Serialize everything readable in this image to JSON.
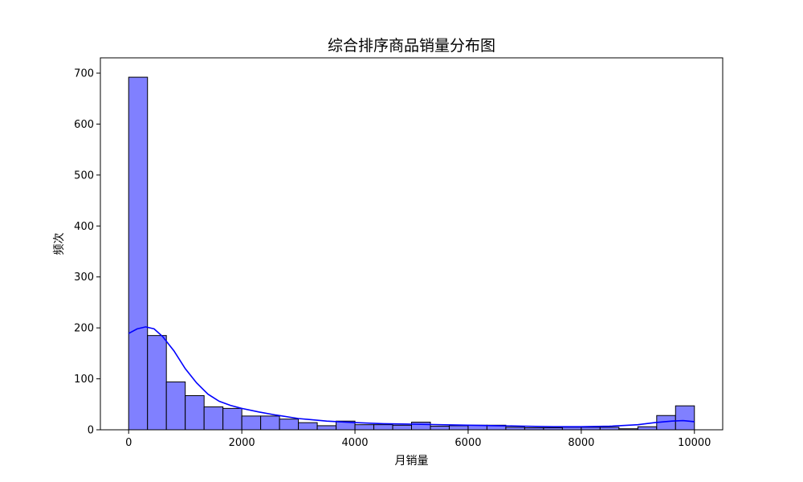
{
  "chart_data": {
    "type": "bar",
    "subtype": "histogram-with-kde",
    "title": "综合排序商品销量分布图",
    "xlabel": "月销量",
    "ylabel": "频次",
    "xlim": [
      -500,
      10500
    ],
    "ylim": [
      0,
      730
    ],
    "x_ticks": [
      0,
      2000,
      4000,
      6000,
      8000,
      10000
    ],
    "y_ticks": [
      0,
      100,
      200,
      300,
      400,
      500,
      600,
      700
    ],
    "bin_width": 333.33,
    "bins": [
      {
        "start": 0,
        "count": 692
      },
      {
        "start": 333.33,
        "count": 185
      },
      {
        "start": 666.67,
        "count": 94
      },
      {
        "start": 1000,
        "count": 67
      },
      {
        "start": 1333.33,
        "count": 45
      },
      {
        "start": 1666.67,
        "count": 42
      },
      {
        "start": 2000,
        "count": 27
      },
      {
        "start": 2333.33,
        "count": 27
      },
      {
        "start": 2666.67,
        "count": 21
      },
      {
        "start": 3000,
        "count": 14
      },
      {
        "start": 3333.33,
        "count": 8
      },
      {
        "start": 3666.67,
        "count": 17
      },
      {
        "start": 4000,
        "count": 10
      },
      {
        "start": 4333.33,
        "count": 10
      },
      {
        "start": 4666.67,
        "count": 9
      },
      {
        "start": 5000,
        "count": 15
      },
      {
        "start": 5333.33,
        "count": 7
      },
      {
        "start": 5666.67,
        "count": 8
      },
      {
        "start": 6000,
        "count": 9
      },
      {
        "start": 6333.33,
        "count": 9
      },
      {
        "start": 6666.67,
        "count": 5
      },
      {
        "start": 7000,
        "count": 4
      },
      {
        "start": 7333.33,
        "count": 4
      },
      {
        "start": 7666.67,
        "count": 5
      },
      {
        "start": 8000,
        "count": 5
      },
      {
        "start": 8333.33,
        "count": 5
      },
      {
        "start": 8666.67,
        "count": 2
      },
      {
        "start": 9000,
        "count": 6
      },
      {
        "start": 9333.33,
        "count": 28
      },
      {
        "start": 9666.67,
        "count": 47
      }
    ],
    "kde_line": [
      {
        "x": 0,
        "y": 189
      },
      {
        "x": 150,
        "y": 198
      },
      {
        "x": 300,
        "y": 202
      },
      {
        "x": 450,
        "y": 198
      },
      {
        "x": 600,
        "y": 183
      },
      {
        "x": 800,
        "y": 155
      },
      {
        "x": 1000,
        "y": 120
      },
      {
        "x": 1200,
        "y": 92
      },
      {
        "x": 1400,
        "y": 70
      },
      {
        "x": 1600,
        "y": 56
      },
      {
        "x": 1800,
        "y": 48
      },
      {
        "x": 2000,
        "y": 42
      },
      {
        "x": 2300,
        "y": 35
      },
      {
        "x": 2600,
        "y": 29
      },
      {
        "x": 3000,
        "y": 22
      },
      {
        "x": 3500,
        "y": 17
      },
      {
        "x": 4000,
        "y": 14
      },
      {
        "x": 4500,
        "y": 12
      },
      {
        "x": 5000,
        "y": 11
      },
      {
        "x": 5500,
        "y": 10
      },
      {
        "x": 6000,
        "y": 9
      },
      {
        "x": 6500,
        "y": 8
      },
      {
        "x": 7000,
        "y": 7
      },
      {
        "x": 7500,
        "y": 6
      },
      {
        "x": 8000,
        "y": 6
      },
      {
        "x": 8500,
        "y": 7
      },
      {
        "x": 9000,
        "y": 10
      },
      {
        "x": 9300,
        "y": 14
      },
      {
        "x": 9600,
        "y": 17
      },
      {
        "x": 9800,
        "y": 18
      },
      {
        "x": 10000,
        "y": 16
      }
    ],
    "bar_color": "#8080ff",
    "bar_edge_color": "#000000",
    "line_color": "#0000ff",
    "grid": false,
    "legend": "none"
  }
}
